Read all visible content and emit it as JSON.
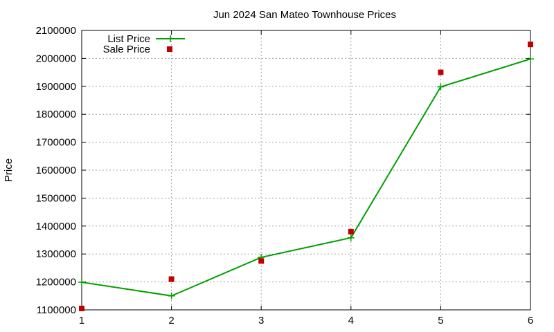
{
  "chart_data": {
    "type": "line",
    "title": "Jun 2024 San Mateo Townhouse Prices",
    "xlabel": "",
    "ylabel": "Price",
    "x": [
      1,
      2,
      3,
      4,
      5,
      6
    ],
    "xlim": [
      1,
      6
    ],
    "ylim": [
      1100000,
      2100000
    ],
    "yticks": [
      "1100000",
      "1200000",
      "1300000",
      "1400000",
      "1500000",
      "1600000",
      "1700000",
      "1800000",
      "1900000",
      "2000000",
      "2100000"
    ],
    "xticks": [
      "1",
      "2",
      "3",
      "4",
      "5",
      "6"
    ],
    "grid": true,
    "legend_position": "top-left",
    "series": [
      {
        "name": "List Price",
        "style": "line+marker",
        "color": "#00a000",
        "marker": "plus",
        "values": [
          1199000,
          1150000,
          1288000,
          1358000,
          1898000,
          1998000
        ]
      },
      {
        "name": "Sale Price",
        "style": "points",
        "color": "#c00000",
        "marker": "square",
        "values": [
          1105000,
          1210000,
          1275000,
          1380000,
          1950000,
          2050000
        ]
      }
    ]
  }
}
